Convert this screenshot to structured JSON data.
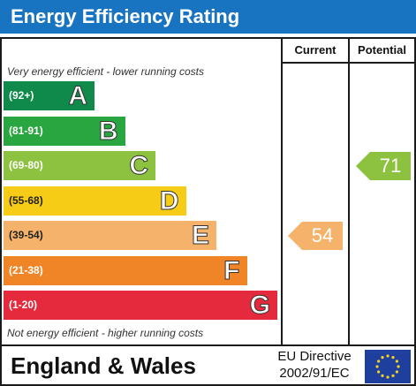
{
  "chart_data": {
    "type": "table",
    "title": "Energy Efficiency Rating",
    "columns": [
      "Current",
      "Potential"
    ],
    "top_note": "Very energy efficient - lower running costs",
    "bottom_note": "Not energy efficient - higher running costs",
    "bands": [
      {
        "range": "(92+)",
        "letter": "A",
        "color": "#0f8a4a"
      },
      {
        "range": "(81-91)",
        "letter": "B",
        "color": "#2aa641"
      },
      {
        "range": "(69-80)",
        "letter": "C",
        "color": "#8cc23f"
      },
      {
        "range": "(55-68)",
        "letter": "D",
        "color": "#f7cc17"
      },
      {
        "range": "(39-54)",
        "letter": "E",
        "color": "#f5b26a"
      },
      {
        "range": "(21-38)",
        "letter": "F",
        "color": "#ef8527"
      },
      {
        "range": "(1-20)",
        "letter": "G",
        "color": "#e52a3d"
      }
    ],
    "current": {
      "value": 54,
      "color": "#f5b26a"
    },
    "potential": {
      "value": 71,
      "color": "#8cc23f"
    }
  },
  "footer": {
    "region": "England & Wales",
    "directive_line1": "EU Directive",
    "directive_line2": "2002/91/EC",
    "flag_icon": "eu-flag-icon"
  }
}
